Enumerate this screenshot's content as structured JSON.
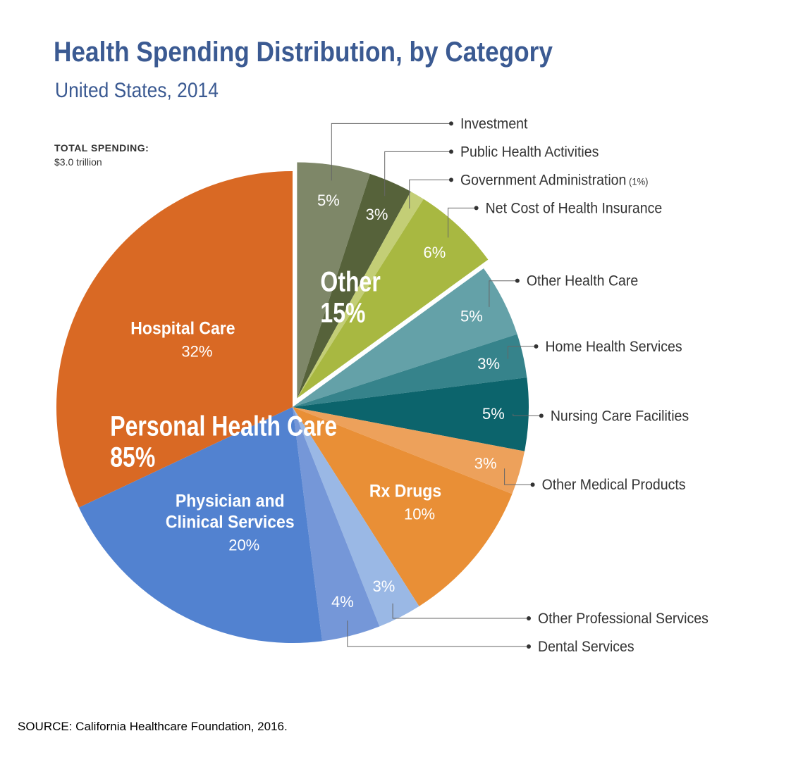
{
  "chart_data": {
    "type": "pie",
    "title": "Health Spending Distribution, by Category",
    "subtitle": "United States, 2014",
    "total_label": "TOTAL SPENDING:",
    "total_value": "$3.0 trillion",
    "source": "SOURCE: California Healthcare Foundation, 2016.",
    "groups": [
      {
        "name": "Personal Health Care",
        "value_label": "85%",
        "value": 85
      },
      {
        "name": "Other",
        "value_label": "15%",
        "value": 15
      }
    ],
    "slices": [
      {
        "name": "Investment",
        "value": 5,
        "value_label": "5%",
        "group": "Other",
        "color": "#7e8768",
        "label_mode": "external"
      },
      {
        "name": "Public Health Activities",
        "value": 3,
        "value_label": "3%",
        "group": "Other",
        "color": "#56623a",
        "label_mode": "external"
      },
      {
        "name": "Government Administration",
        "value": 1,
        "value_label": "(1%)",
        "group": "Other",
        "color": "#c3ce76",
        "label_mode": "external-with-value"
      },
      {
        "name": "Net Cost of Health Insurance",
        "value": 6,
        "value_label": "6%",
        "group": "Other",
        "color": "#a8b841",
        "label_mode": "external"
      },
      {
        "name": "Other Health Care",
        "value": 5,
        "value_label": "5%",
        "group": "Personal Health Care",
        "color": "#64a1a8",
        "label_mode": "external"
      },
      {
        "name": "Home Health Services",
        "value": 3,
        "value_label": "3%",
        "group": "Personal Health Care",
        "color": "#36838b",
        "label_mode": "external"
      },
      {
        "name": "Nursing Care Facilities",
        "value": 5,
        "value_label": "5%",
        "group": "Personal Health Care",
        "color": "#0c646c",
        "label_mode": "external"
      },
      {
        "name": "Other Medical Products",
        "value": 3,
        "value_label": "3%",
        "group": "Personal Health Care",
        "color": "#eda15b",
        "label_mode": "external"
      },
      {
        "name": "Rx Drugs",
        "value": 10,
        "value_label": "10%",
        "group": "Personal Health Care",
        "color": "#e98f36",
        "label_mode": "internal"
      },
      {
        "name": "Other Professional Services",
        "value": 3,
        "value_label": "3%",
        "group": "Personal Health Care",
        "color": "#9ab8e5",
        "label_mode": "external"
      },
      {
        "name": "Dental Services",
        "value": 4,
        "value_label": "4%",
        "group": "Personal Health Care",
        "color": "#7597d8",
        "label_mode": "external"
      },
      {
        "name": "Physician and Clinical Services",
        "name_lines": [
          "Physician and",
          "Clinical Services"
        ],
        "value": 20,
        "value_label": "20%",
        "group": "Personal Health Care",
        "color": "#5282d0",
        "label_mode": "internal"
      },
      {
        "name": "Hospital Care",
        "value": 32,
        "value_label": "32%",
        "group": "Personal Health Care",
        "color": "#d96924",
        "label_mode": "internal"
      }
    ]
  }
}
